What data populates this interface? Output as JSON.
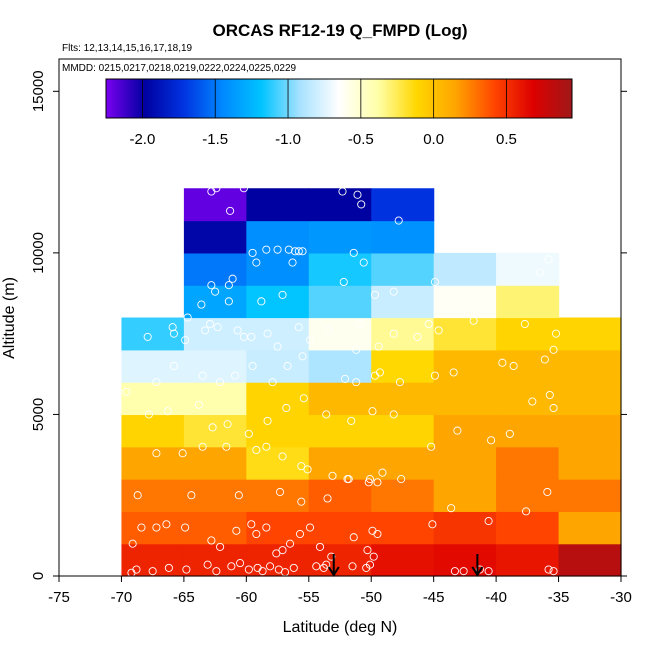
{
  "chart_data": {
    "type": "heatmap",
    "title": "ORCAS RF12-19 Q_FMPD (Log)",
    "subtitle_flights": "Flts: 12,13,14,15,16,17,18,19",
    "subtitle_dates": "MMDD: 0215,0217,0218,0219,0222,0224,0225,0229",
    "xlabel": "Latitude (deg N)",
    "ylabel": "Altitude (m)",
    "xlim": [
      -75,
      -30
    ],
    "ylim": [
      0,
      16000
    ],
    "x_ticks": [
      -75,
      -70,
      -65,
      -60,
      -55,
      -50,
      -45,
      -40,
      -35,
      -30
    ],
    "x_tick_labels": [
      "-75",
      "-70",
      "-65",
      "-60",
      "-55",
      "-50",
      "-45",
      "-40",
      "-35",
      "-30"
    ],
    "y_ticks": [
      0,
      5000,
      10000,
      15000
    ],
    "y_tick_labels": [
      "0",
      "5000",
      "10000",
      "15000"
    ],
    "colorbar": {
      "range": [
        -2.25,
        0.95
      ],
      "ticks": [
        -2.0,
        -1.5,
        -1.0,
        -0.5,
        0.0,
        0.5
      ],
      "tick_labels": [
        "-2.0",
        "-1.5",
        "-1.0",
        "-0.5",
        "0.0",
        "0.5"
      ],
      "colors": [
        "#7a00f0",
        "#0000a0",
        "#0033e0",
        "#0088ff",
        "#00c4ff",
        "#a8e2ff",
        "#ffffff",
        "#ffffa8",
        "#ffd700",
        "#ffa500",
        "#ff4500",
        "#dd0000",
        "#a01818"
      ]
    },
    "cell_width_deg": 5,
    "cell_height_m": 1000,
    "cells": [
      {
        "lat": -70,
        "alt": 0,
        "value": 0.55
      },
      {
        "lat": -65,
        "alt": 0,
        "value": 0.55
      },
      {
        "lat": -60,
        "alt": 0,
        "value": 0.55
      },
      {
        "lat": -55,
        "alt": 0,
        "value": 0.55
      },
      {
        "lat": -50,
        "alt": 0,
        "value": 0.62
      },
      {
        "lat": -45,
        "alt": 0,
        "value": 0.65
      },
      {
        "lat": -40,
        "alt": 0,
        "value": 0.6
      },
      {
        "lat": -35,
        "alt": 0,
        "value": 0.85
      },
      {
        "lat": -70,
        "alt": 1000,
        "value": 0.35
      },
      {
        "lat": -65,
        "alt": 1000,
        "value": 0.35
      },
      {
        "lat": -60,
        "alt": 1000,
        "value": 0.42
      },
      {
        "lat": -55,
        "alt": 1000,
        "value": 0.42
      },
      {
        "lat": -50,
        "alt": 1000,
        "value": 0.42
      },
      {
        "lat": -45,
        "alt": 1000,
        "value": 0.48
      },
      {
        "lat": -40,
        "alt": 1000,
        "value": 0.42
      },
      {
        "lat": -35,
        "alt": 1000,
        "value": 0.15
      },
      {
        "lat": -70,
        "alt": 2000,
        "value": 0.28
      },
      {
        "lat": -65,
        "alt": 2000,
        "value": 0.28
      },
      {
        "lat": -60,
        "alt": 2000,
        "value": 0.28
      },
      {
        "lat": -55,
        "alt": 2000,
        "value": 0.35
      },
      {
        "lat": -50,
        "alt": 2000,
        "value": 0.28
      },
      {
        "lat": -45,
        "alt": 2000,
        "value": 0.15
      },
      {
        "lat": -40,
        "alt": 2000,
        "value": 0.28
      },
      {
        "lat": -35,
        "alt": 2000,
        "value": 0.28
      },
      {
        "lat": -70,
        "alt": 3000,
        "value": 0.15
      },
      {
        "lat": -65,
        "alt": 3000,
        "value": 0.15
      },
      {
        "lat": -60,
        "alt": 3000,
        "value": -0.15
      },
      {
        "lat": -55,
        "alt": 3000,
        "value": 0.15
      },
      {
        "lat": -50,
        "alt": 3000,
        "value": 0.15
      },
      {
        "lat": -45,
        "alt": 3000,
        "value": 0.15
      },
      {
        "lat": -40,
        "alt": 3000,
        "value": 0.28
      },
      {
        "lat": -35,
        "alt": 3000,
        "value": 0.15
      },
      {
        "lat": -70,
        "alt": 4000,
        "value": -0.1
      },
      {
        "lat": -65,
        "alt": 4000,
        "value": -0.2
      },
      {
        "lat": -60,
        "alt": 4000,
        "value": -0.1
      },
      {
        "lat": -55,
        "alt": 4000,
        "value": -0.1
      },
      {
        "lat": -50,
        "alt": 4000,
        "value": -0.1
      },
      {
        "lat": -45,
        "alt": 4000,
        "value": 0.15
      },
      {
        "lat": -40,
        "alt": 4000,
        "value": 0.15
      },
      {
        "lat": -35,
        "alt": 4000,
        "value": 0.15
      },
      {
        "lat": -70,
        "alt": 5000,
        "value": -0.4
      },
      {
        "lat": -65,
        "alt": 5000,
        "value": -0.4
      },
      {
        "lat": -60,
        "alt": 5000,
        "value": -0.1
      },
      {
        "lat": -55,
        "alt": 5000,
        "value": 0.05
      },
      {
        "lat": -50,
        "alt": 5000,
        "value": 0.05
      },
      {
        "lat": -45,
        "alt": 5000,
        "value": 0.05
      },
      {
        "lat": -40,
        "alt": 5000,
        "value": 0.05
      },
      {
        "lat": -35,
        "alt": 5000,
        "value": 0.05
      },
      {
        "lat": -70,
        "alt": 6000,
        "value": -0.75
      },
      {
        "lat": -65,
        "alt": 6000,
        "value": -0.75
      },
      {
        "lat": -60,
        "alt": 6000,
        "value": -0.82
      },
      {
        "lat": -55,
        "alt": 6000,
        "value": -0.9
      },
      {
        "lat": -50,
        "alt": 6000,
        "value": -0.12
      },
      {
        "lat": -45,
        "alt": 6000,
        "value": 0.05
      },
      {
        "lat": -40,
        "alt": 6000,
        "value": 0.05
      },
      {
        "lat": -35,
        "alt": 6000,
        "value": 0.05
      },
      {
        "lat": -70,
        "alt": 7000,
        "value": -1.1
      },
      {
        "lat": -65,
        "alt": 7000,
        "value": -0.8
      },
      {
        "lat": -60,
        "alt": 7000,
        "value": -0.8
      },
      {
        "lat": -55,
        "alt": 7000,
        "value": -0.6
      },
      {
        "lat": -50,
        "alt": 7000,
        "value": -0.35
      },
      {
        "lat": -45,
        "alt": 7000,
        "value": -0.2
      },
      {
        "lat": -40,
        "alt": 7000,
        "value": -0.1
      },
      {
        "lat": -35,
        "alt": 7000,
        "value": -0.1
      },
      {
        "lat": -65,
        "alt": 8000,
        "value": -1.32
      },
      {
        "lat": -60,
        "alt": 8000,
        "value": -1.18
      },
      {
        "lat": -55,
        "alt": 8000,
        "value": -1.05
      },
      {
        "lat": -50,
        "alt": 8000,
        "value": -0.82
      },
      {
        "lat": -45,
        "alt": 8000,
        "value": -0.62
      },
      {
        "lat": -40,
        "alt": 8000,
        "value": -0.3
      },
      {
        "lat": -65,
        "alt": 9000,
        "value": -1.5
      },
      {
        "lat": -60,
        "alt": 9000,
        "value": -1.42
      },
      {
        "lat": -55,
        "alt": 9000,
        "value": -1.15
      },
      {
        "lat": -50,
        "alt": 9000,
        "value": -1.05
      },
      {
        "lat": -45,
        "alt": 9000,
        "value": -0.85
      },
      {
        "lat": -40,
        "alt": 9000,
        "value": -0.7
      },
      {
        "lat": -65,
        "alt": 10000,
        "value": -1.95
      },
      {
        "lat": -60,
        "alt": 10000,
        "value": -1.42
      },
      {
        "lat": -55,
        "alt": 10000,
        "value": -1.38
      },
      {
        "lat": -50,
        "alt": 10000,
        "value": -1.4
      },
      {
        "lat": -65,
        "alt": 11000,
        "value": -2.2
      },
      {
        "lat": -60,
        "alt": 11000,
        "value": -1.98
      },
      {
        "lat": -55,
        "alt": 11000,
        "value": -1.98
      },
      {
        "lat": -50,
        "alt": 11000,
        "value": -1.72
      }
    ],
    "points": [
      [
        -69.2,
        100
      ],
      [
        -68.8,
        200
      ],
      [
        -67.5,
        150
      ],
      [
        -66.2,
        250
      ],
      [
        -64.8,
        200
      ],
      [
        -63.1,
        350
      ],
      [
        -62.4,
        150
      ],
      [
        -61.2,
        300
      ],
      [
        -60.5,
        400
      ],
      [
        -59.8,
        200
      ],
      [
        -59.1,
        250
      ],
      [
        -58.7,
        150
      ],
      [
        -58.1,
        300
      ],
      [
        -57.4,
        200
      ],
      [
        -56.9,
        120
      ],
      [
        -56.2,
        250
      ],
      [
        -54.4,
        300
      ],
      [
        -53.8,
        250
      ],
      [
        -53.6,
        350
      ],
      [
        -51.5,
        300
      ],
      [
        -50.4,
        250
      ],
      [
        -50.1,
        350
      ],
      [
        -43.3,
        150
      ],
      [
        -42.6,
        150
      ],
      [
        -41.3,
        200
      ],
      [
        -40.6,
        150
      ],
      [
        -35.8,
        200
      ],
      [
        -35.4,
        150
      ],
      [
        -69.1,
        1000
      ],
      [
        -68.4,
        1500
      ],
      [
        -67.2,
        1500
      ],
      [
        -66.4,
        1600
      ],
      [
        -64.9,
        1500
      ],
      [
        -62.8,
        1100
      ],
      [
        -62.1,
        900
      ],
      [
        -60.8,
        1400
      ],
      [
        -59.6,
        1600
      ],
      [
        -59.2,
        1300
      ],
      [
        -58.4,
        1500
      ],
      [
        -57.6,
        700
      ],
      [
        -57.1,
        800
      ],
      [
        -56.5,
        1000
      ],
      [
        -55.7,
        1300
      ],
      [
        -54.9,
        1500
      ],
      [
        -54.1,
        900
      ],
      [
        -53.2,
        600
      ],
      [
        -51.4,
        1200
      ],
      [
        -50.3,
        800
      ],
      [
        -49.8,
        600
      ],
      [
        -49.5,
        1300
      ],
      [
        -49.9,
        1400
      ],
      [
        -45.1,
        1600
      ],
      [
        -43.6,
        2100
      ],
      [
        -40.6,
        1700
      ],
      [
        -37.6,
        2000
      ],
      [
        -68.7,
        2500
      ],
      [
        -64.4,
        2500
      ],
      [
        -60.6,
        2500
      ],
      [
        -57.3,
        2600
      ],
      [
        -55.6,
        2300
      ],
      [
        -53.5,
        2400
      ],
      [
        -51.8,
        3000
      ],
      [
        -50.1,
        3000
      ],
      [
        -49.5,
        2900
      ],
      [
        -47.6,
        3000
      ],
      [
        -35.9,
        2600
      ],
      [
        -67.2,
        3800
      ],
      [
        -65.1,
        3800
      ],
      [
        -63.5,
        4000
      ],
      [
        -61.6,
        4000
      ],
      [
        -59.2,
        3900
      ],
      [
        -58.4,
        4000
      ],
      [
        -57.1,
        3700
      ],
      [
        -55.6,
        3400
      ],
      [
        -55.1,
        3300
      ],
      [
        -53.1,
        3100
      ],
      [
        -51.9,
        3000
      ],
      [
        -50.2,
        2900
      ],
      [
        -49.1,
        3200
      ],
      [
        -45.2,
        4000
      ],
      [
        -43.1,
        4500
      ],
      [
        -40.4,
        4200
      ],
      [
        -38.9,
        4400
      ],
      [
        -67.8,
        5000
      ],
      [
        -66.3,
        5100
      ],
      [
        -63.8,
        5300
      ],
      [
        -62.7,
        4600
      ],
      [
        -61.5,
        4700
      ],
      [
        -59.8,
        4400
      ],
      [
        -58.3,
        4800
      ],
      [
        -56.8,
        5200
      ],
      [
        -55.4,
        5500
      ],
      [
        -53.6,
        5000
      ],
      [
        -51.6,
        4800
      ],
      [
        -49.9,
        5100
      ],
      [
        -48.2,
        5000
      ],
      [
        -37.1,
        5400
      ],
      [
        -35.7,
        5600
      ],
      [
        -35.4,
        5200
      ],
      [
        -69.6,
        5700
      ],
      [
        -67.2,
        6000
      ],
      [
        -65.8,
        6500
      ],
      [
        -63.5,
        6200
      ],
      [
        -62.1,
        6000
      ],
      [
        -60.9,
        6200
      ],
      [
        -59.5,
        6500
      ],
      [
        -57.9,
        6000
      ],
      [
        -56.7,
        6500
      ],
      [
        -55.5,
        6800
      ],
      [
        -52.1,
        6100
      ],
      [
        -51.2,
        6000
      ],
      [
        -49.7,
        6200
      ],
      [
        -49.3,
        6300
      ],
      [
        -47.7,
        6000
      ],
      [
        -44.9,
        6200
      ],
      [
        -43.4,
        6300
      ],
      [
        -39.5,
        6600
      ],
      [
        -38.6,
        6500
      ],
      [
        -36.1,
        6700
      ],
      [
        -35.4,
        7000
      ],
      [
        -67.9,
        7400
      ],
      [
        -65.8,
        7500
      ],
      [
        -64.9,
        7300
      ],
      [
        -62.9,
        7800
      ],
      [
        -62.3,
        7700
      ],
      [
        -60.7,
        7600
      ],
      [
        -59.6,
        7400
      ],
      [
        -58.3,
        7500
      ],
      [
        -57.5,
        7100
      ],
      [
        -55.8,
        7700
      ],
      [
        -54.9,
        7300
      ],
      [
        -51.2,
        7000
      ],
      [
        -49.4,
        7100
      ],
      [
        -48.2,
        7500
      ],
      [
        -45.4,
        7800
      ],
      [
        -44.6,
        7600
      ],
      [
        -41.8,
        7900
      ],
      [
        -37.7,
        7800
      ],
      [
        -65.9,
        7700
      ],
      [
        -63.3,
        7600
      ],
      [
        -60.2,
        7400
      ],
      [
        -53.4,
        7600
      ],
      [
        -50.9,
        7800
      ],
      [
        -46.3,
        7400
      ],
      [
        -35.2,
        7500
      ],
      [
        -64.7,
        8000
      ],
      [
        -63.6,
        8400
      ],
      [
        -62.5,
        8800
      ],
      [
        -61.4,
        9000
      ],
      [
        -58.8,
        8500
      ],
      [
        -57.1,
        8700
      ],
      [
        -52.2,
        9100
      ],
      [
        -49.7,
        8700
      ],
      [
        -48.2,
        8800
      ],
      [
        -44.9,
        9100
      ],
      [
        -36.5,
        9400
      ],
      [
        -62.8,
        9000
      ],
      [
        -61.4,
        8500
      ],
      [
        -59.2,
        9700
      ],
      [
        -56.3,
        9700
      ],
      [
        -50.6,
        9700
      ],
      [
        -35.8,
        9800
      ],
      [
        -61.1,
        9200
      ],
      [
        -59.5,
        10000
      ],
      [
        -58.4,
        10100
      ],
      [
        -57.5,
        10100
      ],
      [
        -56.6,
        10100
      ],
      [
        -56.1,
        10050
      ],
      [
        -55.8,
        10050
      ],
      [
        -55.5,
        10050
      ],
      [
        -51.4,
        10000
      ],
      [
        -47.8,
        11000
      ],
      [
        -50.8,
        11500
      ],
      [
        -61.3,
        11300
      ],
      [
        -62.8,
        11900
      ],
      [
        -62.4,
        12000
      ],
      [
        -60.2,
        12000
      ],
      [
        -52.3,
        11900
      ],
      [
        -51.1,
        11800
      ]
    ],
    "arrows_lat": [
      -53.0,
      -41.5
    ]
  }
}
